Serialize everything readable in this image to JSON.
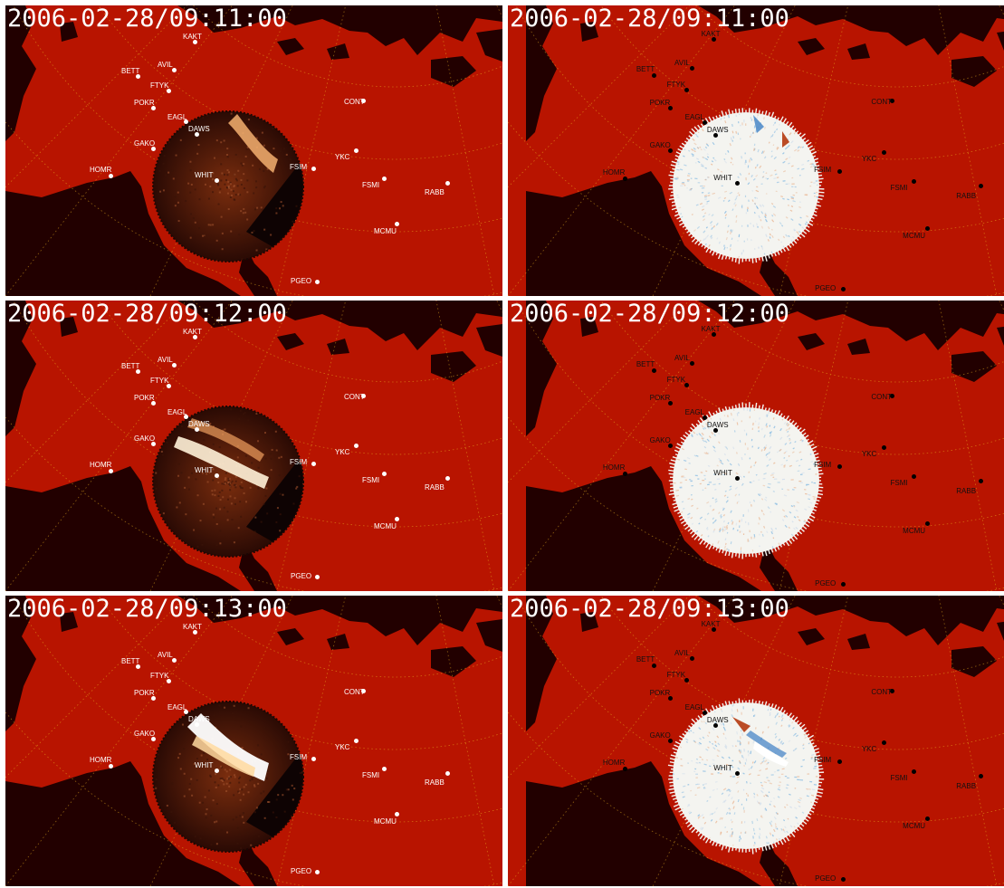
{
  "panels": [
    {
      "id": "r1-left",
      "mode": "raw",
      "timestamp": "2006-02-28/09:11:00",
      "stage": 1
    },
    {
      "id": "r1-right",
      "mode": "diff",
      "timestamp": "2006-02-28/09:11:00",
      "stage": 1
    },
    {
      "id": "r2-left",
      "mode": "raw",
      "timestamp": "2006-02-28/09:12:00",
      "stage": 2
    },
    {
      "id": "r2-right",
      "mode": "diff",
      "timestamp": "2006-02-28/09:12:00",
      "stage": 2
    },
    {
      "id": "r3-left",
      "mode": "raw",
      "timestamp": "2006-02-28/09:13:00",
      "stage": 3
    },
    {
      "id": "r3-right",
      "mode": "diff",
      "timestamp": "2006-02-28/09:13:00",
      "stage": 3
    }
  ],
  "stations": [
    "KAKT",
    "BETT",
    "AVIL",
    "FTYK",
    "POKR",
    "EAGL",
    "DAWS",
    "GAKO",
    "HOMR",
    "WHIT",
    "FSIM",
    "YKC",
    "CONT",
    "FSMI",
    "RABB",
    "MCMU",
    "PGEO"
  ],
  "colors": {
    "land": "#b81400",
    "ocean": "#220000",
    "grid": "#e8b020",
    "aurora": "#ffffff"
  }
}
